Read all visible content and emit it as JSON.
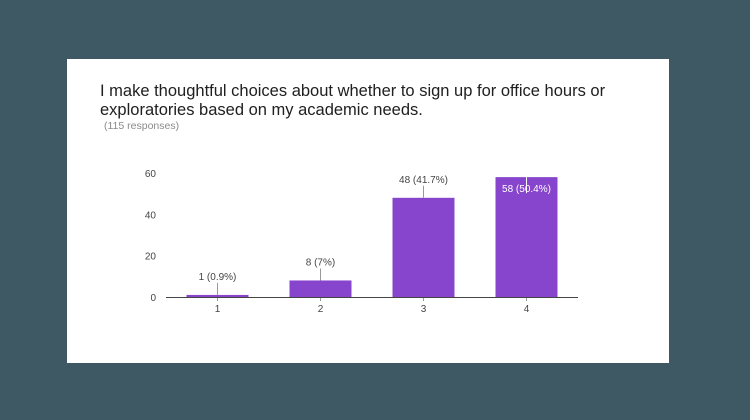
{
  "card": {
    "question": "I make thoughtful choices about whether to sign up for office hours or exploratories based on my academic needs.",
    "responses": "(115 responses)"
  },
  "colors": {
    "background": "#3e5963",
    "bar": "#8744cc",
    "axis": "#444444",
    "label": "#444444"
  },
  "chart_data": {
    "type": "bar",
    "title": "I make thoughtful choices about whether to sign up for office hours or exploratories based on my academic needs.",
    "subtitle": "(115 responses)",
    "categories": [
      "1",
      "2",
      "3",
      "4"
    ],
    "values": [
      1,
      8,
      48,
      58
    ],
    "data_labels": [
      "1 (0.9%)",
      "8 (7%)",
      "48 (41.7%)",
      "58 (50.4%)"
    ],
    "yticks": [
      "0",
      "20",
      "40",
      "60"
    ],
    "ylim": [
      0,
      60
    ],
    "grid": false,
    "legend": "none"
  }
}
